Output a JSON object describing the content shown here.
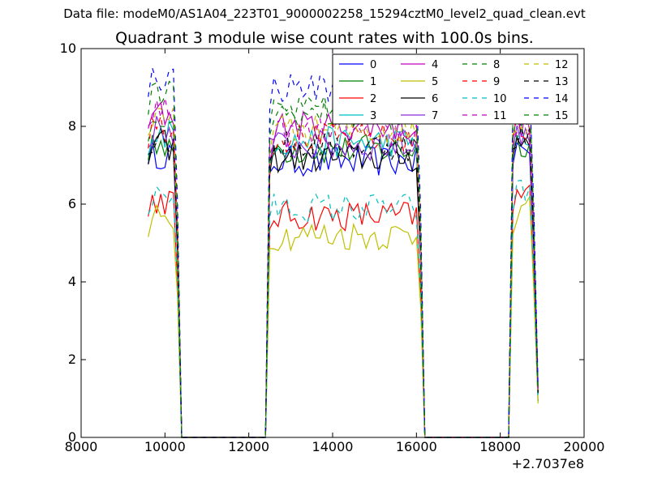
{
  "figure": {
    "suptitle": "Data file: modeM0/AS1A04_223T01_9000002258_15294cztM0_level2_quad_clean.evt"
  },
  "chart_data": {
    "type": "line",
    "title": "Quadrant 3 module wise count rates with 100.0s bins.",
    "xlabel": "",
    "ylabel": "",
    "xlim": [
      8000,
      20000
    ],
    "ylim": [
      0,
      10
    ],
    "x_ticks": [
      "8000",
      "10000",
      "12000",
      "14000",
      "16000",
      "18000",
      "20000"
    ],
    "y_ticks": [
      "0",
      "2",
      "4",
      "6",
      "8",
      "10"
    ],
    "x_offset_label": "+2.7037e8",
    "grid": false,
    "legend_position": "top-right",
    "legend_columns": 4,
    "segments": [
      {
        "start": 9600,
        "end": 10400
      },
      {
        "start": 12500,
        "end": 16200
      },
      {
        "start": 18300,
        "end": 18900
      }
    ],
    "series": [
      {
        "name": "0",
        "color": "#0000ff",
        "dash": "solid",
        "levels": [
          7.3,
          7.1,
          7.4
        ]
      },
      {
        "name": "1",
        "color": "#008000",
        "dash": "solid",
        "levels": [
          7.6,
          7.4,
          7.6
        ]
      },
      {
        "name": "2",
        "color": "#ff0000",
        "dash": "solid",
        "levels": [
          6.1,
          5.7,
          6.2
        ]
      },
      {
        "name": "3",
        "color": "#00bfbf",
        "dash": "solid",
        "levels": [
          7.8,
          7.6,
          7.7
        ]
      },
      {
        "name": "4",
        "color": "#bf00bf",
        "dash": "solid",
        "levels": [
          8.3,
          8.0,
          8.1
        ]
      },
      {
        "name": "5",
        "color": "#bfbf00",
        "dash": "solid",
        "levels": [
          5.6,
          5.2,
          5.8
        ]
      },
      {
        "name": "6",
        "color": "#000000",
        "dash": "solid",
        "levels": [
          7.5,
          7.2,
          7.6
        ]
      },
      {
        "name": "7",
        "color": "#8a2be2",
        "dash": "solid",
        "levels": [
          7.9,
          7.5,
          7.8
        ]
      },
      {
        "name": "8",
        "color": "#008000",
        "dash": "dashed",
        "levels": [
          8.2,
          8.4,
          8.3
        ]
      },
      {
        "name": "9",
        "color": "#ff0000",
        "dash": "dashed",
        "levels": [
          8.0,
          7.7,
          8.0
        ]
      },
      {
        "name": "10",
        "color": "#00bfbf",
        "dash": "dashed",
        "levels": [
          6.2,
          5.9,
          6.3
        ]
      },
      {
        "name": "11",
        "color": "#bf00bf",
        "dash": "dashed",
        "levels": [
          8.4,
          7.8,
          8.0
        ]
      },
      {
        "name": "12",
        "color": "#bfbf00",
        "dash": "dashed",
        "levels": [
          8.1,
          7.9,
          8.2
        ]
      },
      {
        "name": "13",
        "color": "#000000",
        "dash": "dashed",
        "levels": [
          7.7,
          7.5,
          7.7
        ]
      },
      {
        "name": "14",
        "color": "#0000ff",
        "dash": "dashed",
        "levels": [
          9.3,
          9.0,
          9.1
        ]
      },
      {
        "name": "15",
        "color": "#008000",
        "dash": "dashed",
        "levels": [
          8.8,
          8.3,
          8.6
        ]
      }
    ]
  }
}
